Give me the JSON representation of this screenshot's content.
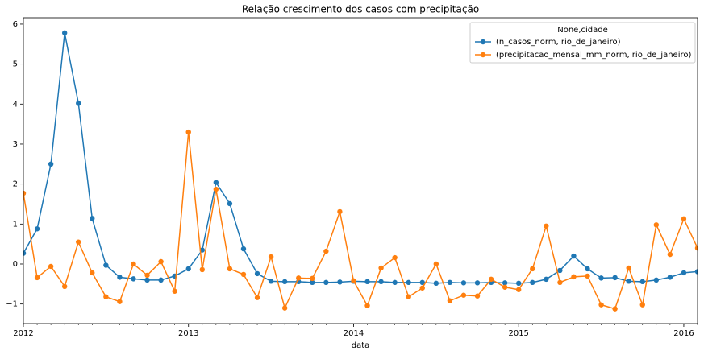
{
  "chart_data": {
    "type": "line",
    "title": "Relação crescimento dos casos com precipitação",
    "xlabel": "data",
    "legend_title": "None,cidade",
    "legend": "upper right",
    "x": [
      "2012-01",
      "2012-02",
      "2012-03",
      "2012-04",
      "2012-05",
      "2012-06",
      "2012-07",
      "2012-08",
      "2012-09",
      "2012-10",
      "2012-11",
      "2012-12",
      "2013-01",
      "2013-02",
      "2013-03",
      "2013-04",
      "2013-05",
      "2013-06",
      "2013-07",
      "2013-08",
      "2013-09",
      "2013-10",
      "2013-11",
      "2013-12",
      "2014-01",
      "2014-02",
      "2014-03",
      "2014-04",
      "2014-05",
      "2014-06",
      "2014-07",
      "2014-08",
      "2014-09",
      "2014-10",
      "2014-11",
      "2014-12",
      "2015-01",
      "2015-02",
      "2015-03",
      "2015-04",
      "2015-05",
      "2015-06",
      "2015-07",
      "2015-08",
      "2015-09",
      "2015-10",
      "2015-11",
      "2015-12",
      "2016-01",
      "2016-02"
    ],
    "series": [
      {
        "name": "(n_casos_norm, rio_de_janeiro)",
        "color": "#1f77b4",
        "values": [
          0.27,
          0.88,
          2.5,
          5.78,
          4.02,
          1.14,
          -0.03,
          -0.33,
          -0.37,
          -0.4,
          -0.4,
          -0.3,
          -0.12,
          0.35,
          2.04,
          1.51,
          0.38,
          -0.24,
          -0.43,
          -0.44,
          -0.44,
          -0.46,
          -0.46,
          -0.45,
          -0.43,
          -0.44,
          -0.44,
          -0.46,
          -0.46,
          -0.46,
          -0.48,
          -0.46,
          -0.47,
          -0.47,
          -0.46,
          -0.47,
          -0.48,
          -0.46,
          -0.38,
          -0.16,
          0.2,
          -0.12,
          -0.35,
          -0.34,
          -0.43,
          -0.44,
          -0.4,
          -0.33,
          -0.22,
          -0.19
        ]
      },
      {
        "name": "(precipitacao_mensal_mm_norm, rio_de_janeiro)",
        "color": "#ff7f0e",
        "values": [
          1.77,
          -0.34,
          -0.06,
          -0.56,
          0.55,
          -0.22,
          -0.82,
          -0.94,
          0.0,
          -0.28,
          0.06,
          -0.68,
          3.3,
          -0.14,
          1.87,
          -0.12,
          -0.26,
          -0.84,
          0.18,
          -1.1,
          -0.35,
          -0.36,
          0.32,
          1.31,
          -0.42,
          -1.04,
          -0.1,
          0.16,
          -0.82,
          -0.6,
          0.0,
          -0.92,
          -0.78,
          -0.8,
          -0.38,
          -0.58,
          -0.64,
          -0.12,
          0.95,
          -0.46,
          -0.32,
          -0.3,
          -1.02,
          -1.12,
          -0.1,
          -1.02,
          0.98,
          0.24,
          1.13,
          0.4
        ]
      }
    ],
    "xlim": [
      "2012-01",
      "2016-02"
    ],
    "xticks": [
      {
        "value": "2012-01",
        "label": "2012"
      },
      {
        "value": "2013-01",
        "label": "2013"
      },
      {
        "value": "2014-01",
        "label": "2014"
      },
      {
        "value": "2015-01",
        "label": "2015"
      },
      {
        "value": "2016-01",
        "label": "2016"
      }
    ],
    "ylim": [
      -1.49,
      6.16
    ],
    "yticks": [
      {
        "value": -1,
        "label": "−1"
      },
      0,
      1,
      2,
      3,
      4,
      5,
      6
    ],
    "grid": false
  }
}
